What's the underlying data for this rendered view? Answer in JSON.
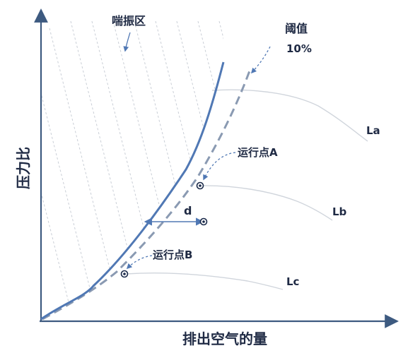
{
  "labels": {
    "surge_zone": "喘振区",
    "threshold_title": "阈值",
    "threshold_value": "10%",
    "y_axis": "压力比",
    "x_axis": "排出空气的量",
    "point_a": "运行点A",
    "point_b": "运行点B",
    "distance": "d",
    "curve_a": "La",
    "curve_b": "Lb",
    "curve_c": "Lc"
  },
  "colors": {
    "axis": "#3d5a80",
    "surge_line": "#5078b4",
    "threshold_line": "#8a9ab2",
    "hatch": "#c9ced6",
    "speed_lines": "#d0d5dc",
    "point": "#1a2a4a",
    "text": "#1f2a44"
  }
}
